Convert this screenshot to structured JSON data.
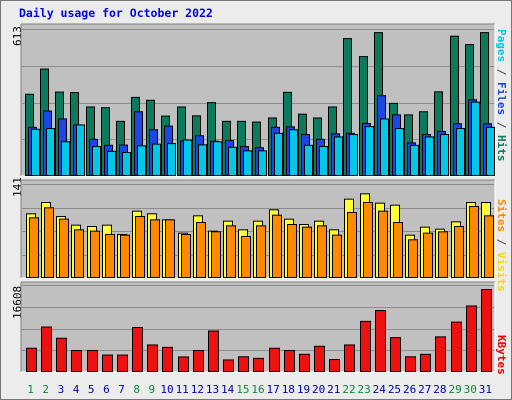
{
  "chart_data": {
    "type": "bar",
    "title": "Daily usage for October 2022",
    "categories": [
      "1",
      "2",
      "3",
      "4",
      "5",
      "6",
      "7",
      "8",
      "9",
      "10",
      "11",
      "12",
      "13",
      "14",
      "15",
      "16",
      "17",
      "18",
      "19",
      "20",
      "21",
      "22",
      "23",
      "24",
      "25",
      "26",
      "27",
      "28",
      "29",
      "30",
      "31"
    ],
    "weekend_days": [
      "1",
      "2",
      "8",
      "9",
      "15",
      "16",
      "22",
      "23",
      "29",
      "30"
    ],
    "panels": [
      {
        "name": "pages-files-hits",
        "ymax_label": "613",
        "ylim": [
          0,
          613
        ],
        "side_labels": [
          {
            "text": "Pages",
            "color": "#00c8e6"
          },
          {
            "text": " / ",
            "color": "#4d4d4d"
          },
          {
            "text": "Files",
            "color": "#1e46e6"
          },
          {
            "text": " / ",
            "color": "#4d4d4d"
          },
          {
            "text": "Hits",
            "color": "#0e7a5c"
          }
        ],
        "series": [
          {
            "name": "Hits",
            "color": "#0e7a5c",
            "values": [
              343,
              448,
              352,
              350,
              290,
              287,
              230,
              330,
              318,
              252,
              290,
              253,
              308,
              230,
              230,
              227,
              244,
              351,
              260,
              244,
              290,
              575,
              500,
              600,
              305,
              257,
              270,
              353,
              585,
              550,
              600
            ]
          },
          {
            "name": "Files",
            "color": "#1e46e6",
            "values": [
              205,
              273,
              240,
              215,
              155,
              130,
              131,
              270,
              195,
              210,
              148,
              170,
              147,
              150,
              125,
              120,
              205,
              207,
              175,
              155,
              178,
              180,
              221,
              337,
              257,
              140,
              175,
              188,
              220,
              320,
              220
            ]
          },
          {
            "name": "Pages",
            "color": "#00c8e6",
            "values": [
              197,
              200,
              145,
              215,
              125,
              105,
              100,
              128,
              135,
              137,
              152,
              132,
              145,
              122,
              107,
              107,
              180,
              195,
              130,
              125,
              165,
              175,
              208,
              240,
              200,
              130,
              165,
              175,
              200,
              310,
              205
            ]
          }
        ]
      },
      {
        "name": "sites-visits",
        "ymax_label": "141",
        "ylim": [
          0,
          141
        ],
        "side_labels": [
          {
            "text": "Sites",
            "color": "#ff8a00"
          },
          {
            "text": " / ",
            "color": "#4d4d4d"
          },
          {
            "text": "Visits",
            "color": "#f0dc00"
          }
        ],
        "series": [
          {
            "name": "Visits",
            "color": "#ffff33",
            "values": [
              97,
              114,
              93,
              80,
              78,
              80,
              66,
              101,
              97,
              88,
              68,
              94,
              71,
              86,
              73,
              86,
              103,
              89,
              81,
              86,
              73,
              119,
              127,
              113,
              110,
              65,
              77,
              74,
              85,
              114,
              114
            ]
          },
          {
            "name": "Sites",
            "color": "#ff8a00",
            "values": [
              91,
              106,
              89,
              73,
              71,
              66,
              65,
              93,
              88,
              88,
              66,
              84,
              70,
              79,
              63,
              79,
              95,
              81,
              77,
              79,
              65,
              99,
              114,
              101,
              84,
              58,
              68,
              70,
              78,
              108,
              94
            ]
          }
        ]
      },
      {
        "name": "kbytes",
        "ymax_label": "16608",
        "ylim": [
          0,
          16608
        ],
        "side_labels": [
          {
            "text": "KBytes",
            "color": "#ee0000"
          }
        ],
        "series": [
          {
            "name": "KBytes",
            "color": "#ee1111",
            "values": [
              4630,
              8680,
              6540,
              4200,
              4200,
              3330,
              3330,
              8590,
              5260,
              4800,
              2970,
              4200,
              7920,
              2400,
              3000,
              2700,
              4630,
              4200,
              3480,
              5000,
              2470,
              5260,
              9760,
              11830,
              6660,
              3000,
              3470,
              6800,
              9620,
              12700,
              15840
            ]
          }
        ]
      }
    ]
  }
}
